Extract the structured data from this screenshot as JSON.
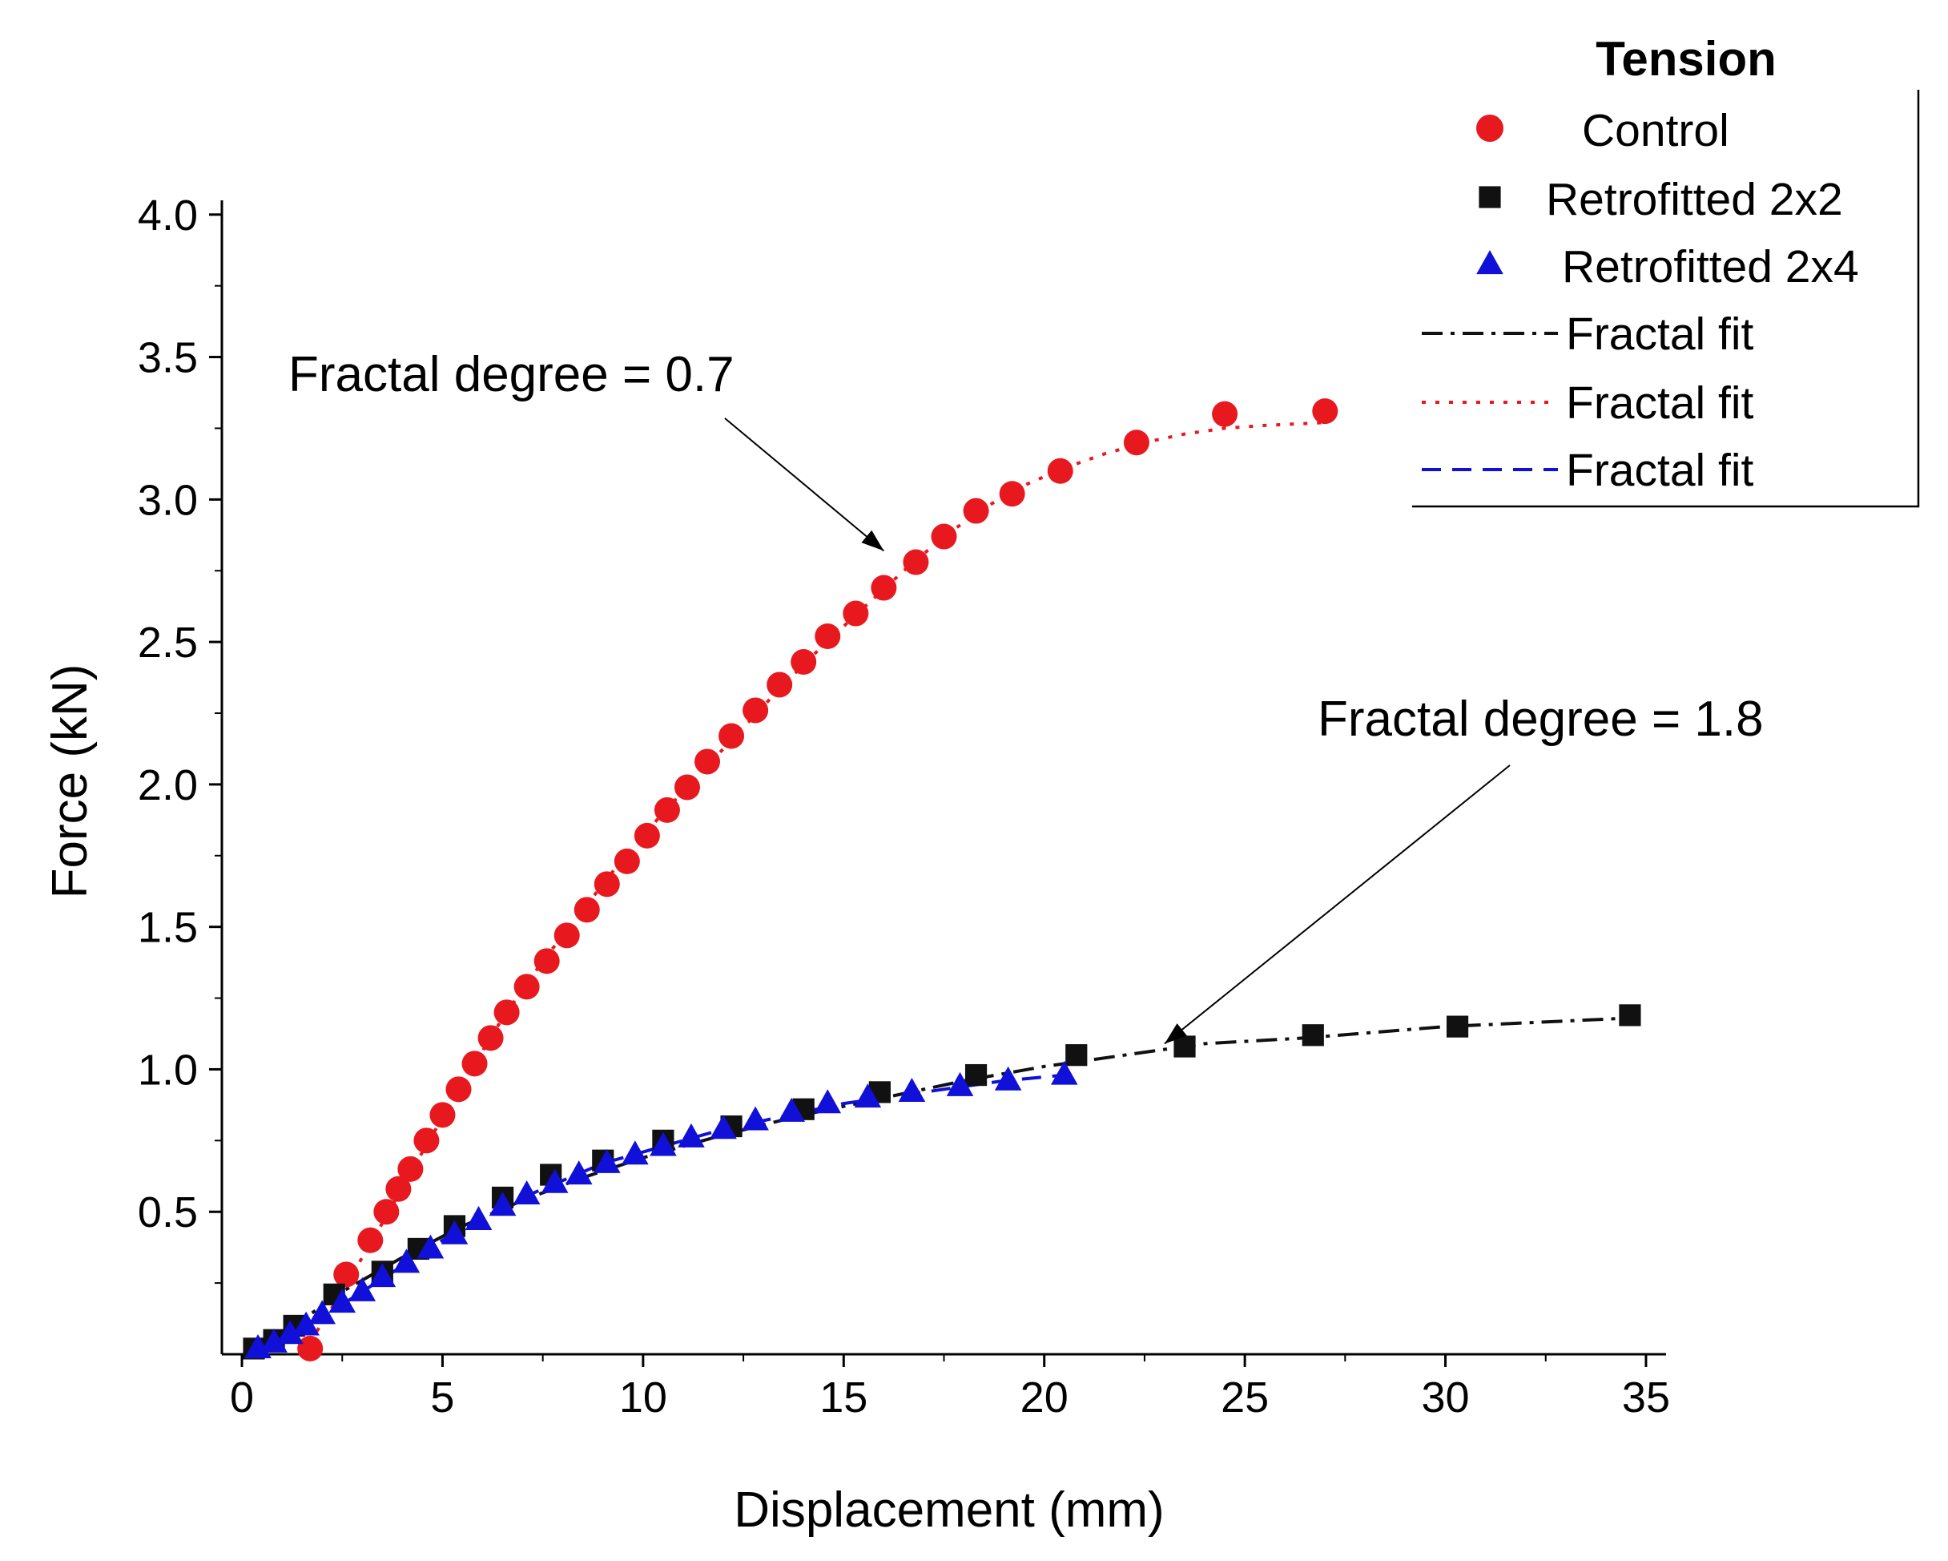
{
  "chart_data": {
    "type": "scatter",
    "xlabel": "Displacement (mm)",
    "ylabel": "Force (kN)",
    "xlim": [
      -0.5,
      35.5
    ],
    "ylim": [
      0,
      4.05
    ],
    "x_ticks": [
      0,
      5,
      10,
      15,
      20,
      25,
      30,
      35
    ],
    "x_tick_labels": [
      "0",
      "5",
      "10",
      "15",
      "20",
      "25",
      "30",
      "35"
    ],
    "y_ticks": [
      0.5,
      1.0,
      1.5,
      2.0,
      2.5,
      3.0,
      3.5,
      4.0
    ],
    "y_tick_labels": [
      "0.5",
      "1.0",
      "1.5",
      "2.0",
      "2.5",
      "3.0",
      "3.5",
      "4.0"
    ],
    "grid": false,
    "legend": {
      "title": "Tension",
      "position": "top-right",
      "entries": [
        {
          "label": "Control",
          "marker": "circle",
          "color": "#e8191e"
        },
        {
          "label": "Retrofitted 2x2",
          "marker": "square",
          "color": "#111111"
        },
        {
          "label": "Retrofitted 2x4",
          "marker": "triangle",
          "color": "#1010d8"
        },
        {
          "label": "Fractal fit",
          "line": "dash-dot",
          "color": "#111111"
        },
        {
          "label": "Fractal fit",
          "line": "dotted",
          "color": "#e8191e"
        },
        {
          "label": "Fractal fit",
          "line": "dashed",
          "color": "#1010d8"
        }
      ]
    },
    "annotations": [
      {
        "text": "Fractal degree = 0.7",
        "points_to": [
          16,
          2.82
        ]
      },
      {
        "text": "Fractal degree = 1.8",
        "points_to": [
          23,
          1.09
        ]
      }
    ],
    "series": [
      {
        "name": "Control",
        "kind": "markers",
        "marker": "circle",
        "color": "#e8191e",
        "points": [
          [
            1.7,
            0.02
          ],
          [
            2.6,
            0.28
          ],
          [
            3.2,
            0.4
          ],
          [
            3.6,
            0.5
          ],
          [
            3.9,
            0.58
          ],
          [
            4.2,
            0.65
          ],
          [
            4.6,
            0.75
          ],
          [
            5.0,
            0.84
          ],
          [
            5.4,
            0.93
          ],
          [
            5.8,
            1.02
          ],
          [
            6.2,
            1.11
          ],
          [
            6.6,
            1.2
          ],
          [
            7.1,
            1.29
          ],
          [
            7.6,
            1.38
          ],
          [
            8.1,
            1.47
          ],
          [
            8.6,
            1.56
          ],
          [
            9.1,
            1.65
          ],
          [
            9.6,
            1.73
          ],
          [
            10.1,
            1.82
          ],
          [
            10.6,
            1.91
          ],
          [
            11.1,
            1.99
          ],
          [
            11.6,
            2.08
          ],
          [
            12.2,
            2.17
          ],
          [
            12.8,
            2.26
          ],
          [
            13.4,
            2.35
          ],
          [
            14.0,
            2.43
          ],
          [
            14.6,
            2.52
          ],
          [
            15.3,
            2.6
          ],
          [
            16.0,
            2.69
          ],
          [
            16.8,
            2.78
          ],
          [
            17.5,
            2.87
          ],
          [
            18.3,
            2.96
          ],
          [
            19.2,
            3.02
          ],
          [
            20.4,
            3.1
          ],
          [
            22.3,
            3.2
          ],
          [
            24.5,
            3.3
          ],
          [
            27.0,
            3.31
          ]
        ]
      },
      {
        "name": "Retrofitted 2x2",
        "kind": "markers",
        "marker": "square",
        "color": "#111111",
        "points": [
          [
            0.3,
            0.02
          ],
          [
            0.8,
            0.05
          ],
          [
            1.3,
            0.1
          ],
          [
            2.3,
            0.21
          ],
          [
            3.5,
            0.29
          ],
          [
            4.4,
            0.37
          ],
          [
            5.3,
            0.45
          ],
          [
            6.5,
            0.55
          ],
          [
            7.7,
            0.63
          ],
          [
            9.0,
            0.68
          ],
          [
            10.5,
            0.75
          ],
          [
            12.2,
            0.8
          ],
          [
            14.0,
            0.86
          ],
          [
            15.9,
            0.92
          ],
          [
            18.3,
            0.98
          ],
          [
            20.8,
            1.05
          ],
          [
            23.5,
            1.08
          ],
          [
            26.7,
            1.12
          ],
          [
            30.3,
            1.15
          ],
          [
            34.6,
            1.19
          ]
        ]
      },
      {
        "name": "Retrofitted 2x4",
        "kind": "markers",
        "marker": "triangle",
        "color": "#1010d8",
        "points": [
          [
            0.4,
            0.02
          ],
          [
            0.8,
            0.04
          ],
          [
            1.2,
            0.07
          ],
          [
            1.6,
            0.1
          ],
          [
            2.0,
            0.14
          ],
          [
            2.5,
            0.18
          ],
          [
            3.0,
            0.22
          ],
          [
            3.5,
            0.27
          ],
          [
            4.1,
            0.32
          ],
          [
            4.7,
            0.37
          ],
          [
            5.3,
            0.42
          ],
          [
            5.9,
            0.47
          ],
          [
            6.5,
            0.52
          ],
          [
            7.1,
            0.56
          ],
          [
            7.8,
            0.6
          ],
          [
            8.4,
            0.63
          ],
          [
            9.1,
            0.67
          ],
          [
            9.8,
            0.7
          ],
          [
            10.5,
            0.73
          ],
          [
            11.2,
            0.76
          ],
          [
            12.0,
            0.79
          ],
          [
            12.8,
            0.82
          ],
          [
            13.7,
            0.85
          ],
          [
            14.6,
            0.88
          ],
          [
            15.6,
            0.9
          ],
          [
            16.7,
            0.92
          ],
          [
            17.9,
            0.94
          ],
          [
            19.1,
            0.96
          ],
          [
            20.5,
            0.98
          ]
        ]
      },
      {
        "name": "Fractal fit",
        "kind": "line",
        "dash": "dash-dot",
        "color": "#111111",
        "points": [
          [
            0.3,
            0.01
          ],
          [
            1.3,
            0.1
          ],
          [
            2.5,
            0.22
          ],
          [
            4.0,
            0.34
          ],
          [
            5.5,
            0.45
          ],
          [
            7.0,
            0.54
          ],
          [
            8.5,
            0.62
          ],
          [
            10.0,
            0.69
          ],
          [
            12.0,
            0.77
          ],
          [
            14.0,
            0.84
          ],
          [
            16.0,
            0.9
          ],
          [
            18.0,
            0.96
          ],
          [
            20.0,
            1.01
          ],
          [
            22.0,
            1.05
          ],
          [
            24.0,
            1.09
          ],
          [
            26.5,
            1.11
          ],
          [
            30.0,
            1.15
          ],
          [
            34.6,
            1.18
          ]
        ]
      },
      {
        "name": "Fractal fit",
        "kind": "line",
        "dash": "dotted",
        "color": "#e8191e",
        "points": [
          [
            1.5,
            0.0
          ],
          [
            2.5,
            0.22
          ],
          [
            3.5,
            0.46
          ],
          [
            4.5,
            0.71
          ],
          [
            5.5,
            0.95
          ],
          [
            6.5,
            1.18
          ],
          [
            7.5,
            1.38
          ],
          [
            8.5,
            1.56
          ],
          [
            9.5,
            1.74
          ],
          [
            10.5,
            1.9
          ],
          [
            11.5,
            2.05
          ],
          [
            12.5,
            2.2
          ],
          [
            13.5,
            2.35
          ],
          [
            14.5,
            2.49
          ],
          [
            15.5,
            2.62
          ],
          [
            16.5,
            2.75
          ],
          [
            17.5,
            2.87
          ],
          [
            18.5,
            2.97
          ],
          [
            19.5,
            3.05
          ],
          [
            20.5,
            3.11
          ],
          [
            21.5,
            3.16
          ],
          [
            22.5,
            3.2
          ],
          [
            23.5,
            3.23
          ],
          [
            24.5,
            3.25
          ],
          [
            25.5,
            3.26
          ],
          [
            27.0,
            3.27
          ]
        ]
      },
      {
        "name": "Fractal fit",
        "kind": "line",
        "dash": "dashed",
        "color": "#1010d8",
        "points": [
          [
            0.4,
            0.01
          ],
          [
            1.0,
            0.05
          ],
          [
            2.0,
            0.13
          ],
          [
            3.0,
            0.22
          ],
          [
            4.0,
            0.31
          ],
          [
            5.0,
            0.4
          ],
          [
            6.0,
            0.48
          ],
          [
            7.0,
            0.55
          ],
          [
            8.0,
            0.61
          ],
          [
            9.0,
            0.67
          ],
          [
            10.0,
            0.71
          ],
          [
            11.0,
            0.75
          ],
          [
            12.0,
            0.79
          ],
          [
            13.0,
            0.82
          ],
          [
            14.0,
            0.85
          ],
          [
            15.0,
            0.88
          ],
          [
            16.0,
            0.9
          ],
          [
            17.0,
            0.92
          ],
          [
            18.0,
            0.94
          ],
          [
            19.0,
            0.96
          ],
          [
            20.5,
            0.98
          ]
        ]
      }
    ]
  }
}
